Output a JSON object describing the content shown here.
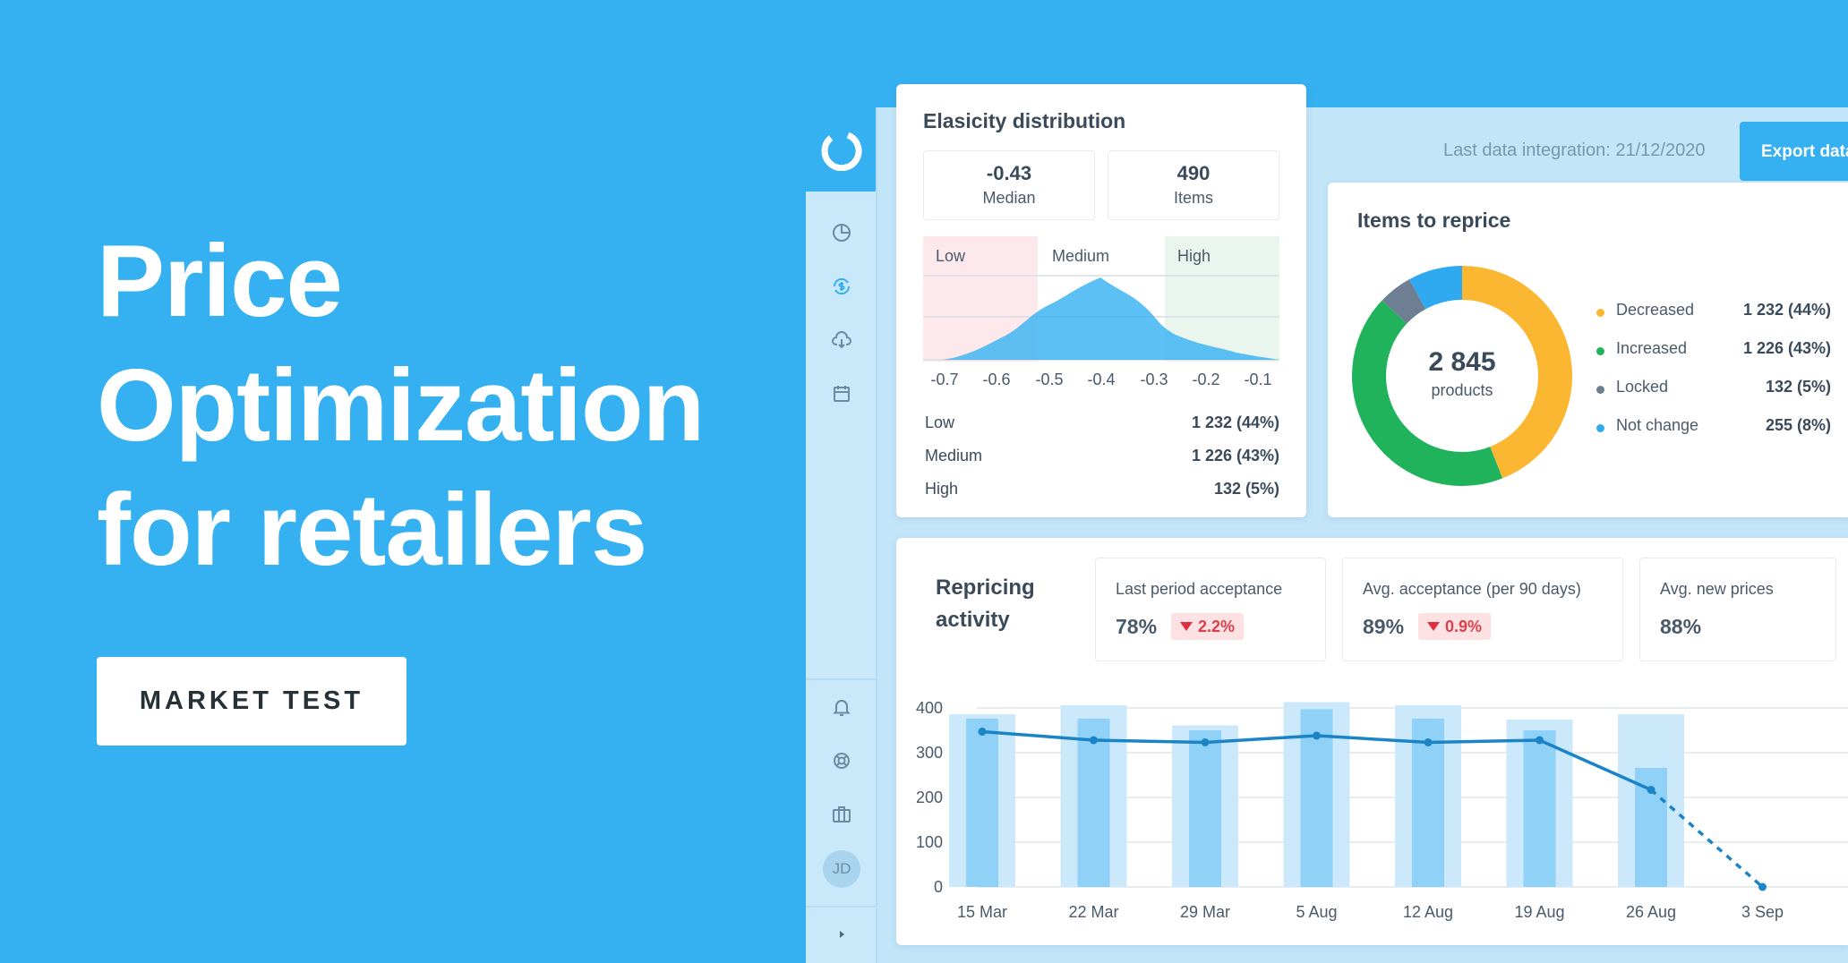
{
  "hero": {
    "title_lines": [
      "Price",
      "Optimization",
      "for retailers"
    ],
    "cta_label": "MARKET TEST"
  },
  "app": {
    "sidebar": {
      "icons": [
        "logo-ring-icon",
        "pie-chart-icon",
        "dollar-refresh-icon",
        "cloud-download-icon",
        "calendar-icon",
        "bell-icon",
        "lifebuoy-icon",
        "briefcase-icon",
        "chevron-right-icon"
      ],
      "avatar_initials": "JD"
    },
    "header": {
      "integration_text": "Last data integration: 21/12/2020",
      "export_label": "Export data"
    },
    "elasticity": {
      "title": "Elasicity distribution",
      "median": {
        "value": "-0.43",
        "label": "Median"
      },
      "items": {
        "value": "490",
        "label": "Items"
      },
      "zones": [
        "Low",
        "Medium",
        "High"
      ],
      "x_ticks": [
        "-0.7",
        "-0.6",
        "-0.5",
        "-0.4",
        "-0.3",
        "-0.2",
        "-0.1"
      ],
      "rows": [
        {
          "label": "Low",
          "value": "1 232 (44%)"
        },
        {
          "label": "Medium",
          "value": "1 226 (43%)"
        },
        {
          "label": "High",
          "value": "132 (5%)"
        }
      ]
    },
    "reprice": {
      "title": "Items to reprice",
      "total_value": "2 845",
      "total_label": "products",
      "legend": [
        {
          "label": "Decreased",
          "value": "1 232 (44%)",
          "color": "#fbb731",
          "share": 44
        },
        {
          "label": "Increased",
          "value": "1 226 (43%)",
          "color": "#21b35b",
          "share": 43
        },
        {
          "label": "Locked",
          "value": "132 (5%)",
          "color": "#6e7f93",
          "share": 5
        },
        {
          "label": "Not change",
          "value": "255 (8%)",
          "color": "#2fa9ef",
          "share": 8
        }
      ]
    },
    "activity": {
      "title": "Repricing activity",
      "kpis": [
        {
          "label": "Last period acceptance",
          "value": "78%",
          "delta": "2.2%"
        },
        {
          "label": "Avg. acceptance (per 90 days)",
          "value": "89%",
          "delta": "0.9%"
        },
        {
          "label": "Avg. new prices",
          "value": "88%",
          "delta": ""
        }
      ]
    }
  },
  "chart_data": {
    "type": "bar",
    "categories": [
      "15 Mar",
      "22 Mar",
      "29 Mar",
      "5 Aug",
      "12 Aug",
      "19 Aug",
      "26 Aug",
      "3 Sep"
    ],
    "ylim": [
      0,
      400
    ],
    "y_ticks": [
      "400",
      "300",
      "200",
      "100",
      "0"
    ],
    "series": [
      {
        "kind": "bar-light",
        "values": [
          386,
          406,
          361,
          413,
          406,
          374,
          386,
          null
        ]
      },
      {
        "kind": "bar-dark",
        "values": [
          376,
          376,
          350,
          397,
          376,
          350,
          266,
          null
        ]
      },
      {
        "kind": "line",
        "values": [
          347,
          328,
          323,
          338,
          323,
          328,
          217,
          0
        ],
        "dashed_from": 6
      }
    ]
  }
}
